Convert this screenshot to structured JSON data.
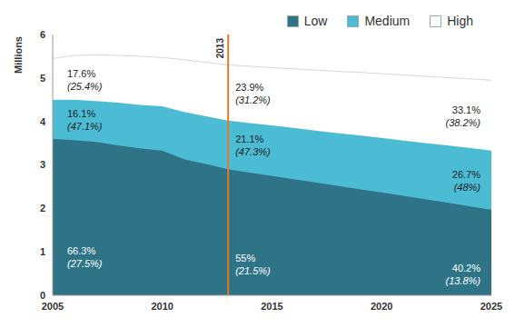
{
  "chart_data": {
    "type": "area",
    "stacked": true,
    "y_label": "Millions",
    "x": [
      2005,
      2006,
      2007,
      2008,
      2009,
      2010,
      2011,
      2012,
      2013,
      2014,
      2015,
      2016,
      2017,
      2018,
      2019,
      2020,
      2021,
      2022,
      2023,
      2024,
      2025
    ],
    "series": [
      {
        "name": "Low",
        "color": "#2e7486",
        "values": [
          3.6,
          3.57,
          3.53,
          3.45,
          3.38,
          3.33,
          3.13,
          3.02,
          2.9,
          2.82,
          2.75,
          2.67,
          2.6,
          2.52,
          2.44,
          2.37,
          2.29,
          2.21,
          2.13,
          2.05,
          1.97
        ]
      },
      {
        "name": "Medium",
        "color": "#4bbcd4",
        "values": [
          0.9,
          0.93,
          0.94,
          0.98,
          1.0,
          1.02,
          1.09,
          1.1,
          1.12,
          1.14,
          1.16,
          1.18,
          1.19,
          1.21,
          1.24,
          1.25,
          1.27,
          1.29,
          1.32,
          1.34,
          1.36
        ]
      },
      {
        "name": "High",
        "color": "#ffffff",
        "values": [
          0.95,
          1.02,
          1.06,
          1.09,
          1.12,
          1.12,
          1.2,
          1.24,
          1.28,
          1.31,
          1.33,
          1.36,
          1.39,
          1.42,
          1.45,
          1.48,
          1.51,
          1.54,
          1.56,
          1.59,
          1.62
        ]
      }
    ],
    "xlim": [
      2005,
      2025
    ],
    "xticks": [
      2005,
      2010,
      2015,
      2020,
      2025
    ],
    "ylim": [
      0,
      6
    ],
    "yticks": [
      0,
      1,
      2,
      3,
      4,
      5,
      6
    ],
    "grid": false,
    "legend": "top-right",
    "reference_line": {
      "x": 2013,
      "text": "2013",
      "color": "#e07b28"
    },
    "annotations": [
      {
        "series": "Low",
        "x": 2005,
        "text": "66.3%",
        "note": "(27.5%)"
      },
      {
        "series": "Medium",
        "x": 2005,
        "text": "16.1%",
        "note": "(47.1%)"
      },
      {
        "series": "High",
        "x": 2005,
        "text": "17.6%",
        "note": "(25.4%)"
      },
      {
        "series": "Low",
        "x": 2013,
        "text": "55%",
        "note": "(21.5%)"
      },
      {
        "series": "Medium",
        "x": 2013,
        "text": "21.1%",
        "note": "(47.3%)"
      },
      {
        "series": "High",
        "x": 2013,
        "text": "23.9%",
        "note": "(31.2%)"
      },
      {
        "series": "Low",
        "x": 2025,
        "text": "40.2%",
        "note": "(13.8%)"
      },
      {
        "series": "Medium",
        "x": 2025,
        "text": "26.7%",
        "note": "(48%)"
      },
      {
        "series": "High",
        "x": 2025,
        "text": "33.1%",
        "note": "(38.2%)"
      }
    ]
  }
}
